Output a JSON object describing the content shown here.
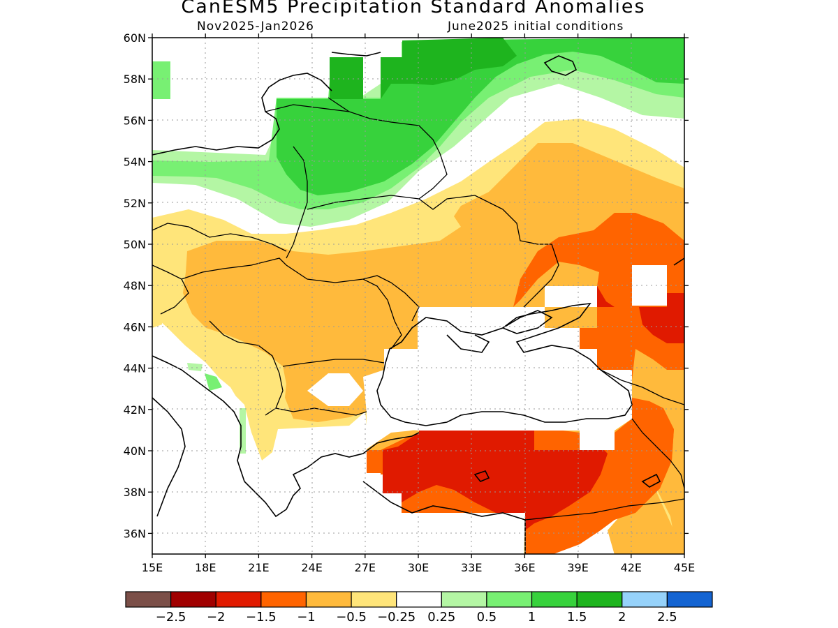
{
  "header": {
    "title": "CanESM5 Precipitation Standard Anomalies",
    "period": "Nov2025-Jan2026",
    "initial_conditions": "June2025 initial conditions"
  },
  "axes": {
    "lat_labels": [
      "60N",
      "58N",
      "56N",
      "54N",
      "52N",
      "50N",
      "48N",
      "46N",
      "44N",
      "42N",
      "40N",
      "38N",
      "36N"
    ],
    "lat_values": [
      60,
      58,
      56,
      54,
      52,
      50,
      48,
      46,
      44,
      42,
      40,
      38,
      36
    ],
    "lon_labels": [
      "15E",
      "18E",
      "21E",
      "24E",
      "27E",
      "30E",
      "33E",
      "36E",
      "39E",
      "42E",
      "45E"
    ],
    "lon_values": [
      15,
      18,
      21,
      24,
      27,
      30,
      33,
      36,
      39,
      42,
      45
    ],
    "lon_range": [
      15,
      45
    ],
    "lat_range": [
      35,
      60
    ],
    "grid": true
  },
  "colorbar": {
    "colors": [
      "#7b4f48",
      "#a00000",
      "#e01a00",
      "#ff6400",
      "#ffba3c",
      "#ffe57a",
      "#ffffff",
      "#b4f6a4",
      "#78f073",
      "#37d23c",
      "#1eb41e",
      "#96d2fa",
      "#1464d2"
    ],
    "labels": [
      "−2.5",
      "−2",
      "−1.5",
      "−1",
      "−0.5",
      "−0.25",
      "0.25",
      "0.5",
      "1",
      "1.5",
      "2",
      "2.5"
    ]
  },
  "chart_data": {
    "type": "heatmap",
    "variable": "Precipitation Standard Anomalies",
    "model": "CanESM5",
    "region": {
      "lon": [
        15,
        45
      ],
      "lat": [
        35,
        60
      ]
    },
    "zones": [
      {
        "name": "",
        "value": 1.0,
        "lon": [
          22,
          31
        ],
        "lat": [
          52,
          57
        ]
      },
      {
        "name": "",
        "value": 1.5,
        "lon": [
          25,
          33
        ],
        "lat": [
          53,
          59
        ]
      },
      {
        "name": "",
        "value": 0.5,
        "lon": [
          15,
          45
        ],
        "lat": [
          53,
          60
        ]
      },
      {
        "name": "",
        "value": -0.25,
        "lon": [
          15,
          45
        ],
        "lat": [
          42,
          52
        ]
      },
      {
        "name": "",
        "value": -0.5,
        "lon": [
          22,
          30
        ],
        "lat": [
          45,
          49
        ]
      },
      {
        "name": "",
        "value": -1.0,
        "lon": [
          37,
          45
        ],
        "lat": [
          46,
          50
        ]
      },
      {
        "name": "",
        "value": -1.5,
        "lon": [
          43,
          45
        ],
        "lat": [
          45,
          47
        ]
      },
      {
        "name": "",
        "value": -2.0,
        "lon": [
          28,
          40
        ],
        "lat": [
          37,
          41
        ]
      }
    ]
  }
}
